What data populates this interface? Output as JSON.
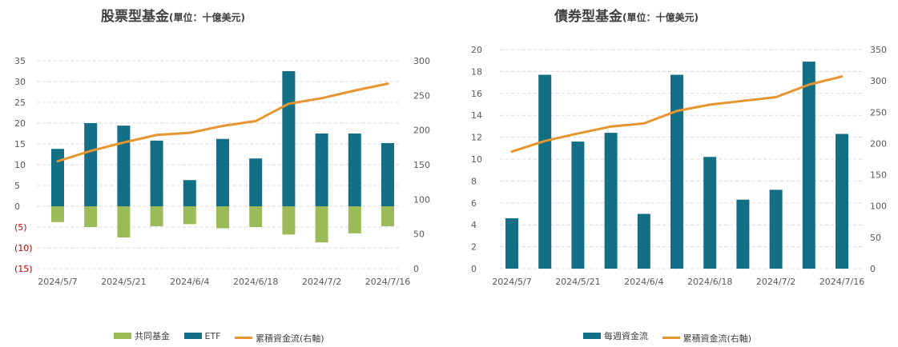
{
  "colors": {
    "fund": "#9bbb59",
    "etf": "#136f86",
    "weekly": "#136f86",
    "cumulative": "#e6952f",
    "negative_tick": "#c00000",
    "grid": "#d9d9d9",
    "text": "#595959"
  },
  "chart_data": [
    {
      "type": "bar",
      "title": "股票型基金",
      "unit": "(單位：十億美元)",
      "x_tick_labels": [
        "2024/5/7",
        "2024/5/21",
        "2024/6/4",
        "2024/6/18",
        "2024/7/2",
        "2024/7/16"
      ],
      "y_ticks_left": [
        "35",
        "30",
        "25",
        "20",
        "15",
        "10",
        "5",
        "0",
        "(5)",
        "(10)",
        "(15)"
      ],
      "y_ticks_right": [
        "300",
        "250",
        "200",
        "150",
        "100",
        "50",
        "0"
      ],
      "ylim_left": [
        -15,
        35
      ],
      "ylim_right": [
        0,
        300
      ],
      "stacked": true,
      "grid": true,
      "legend_position": "bottom",
      "series": [
        {
          "name": "共同基金",
          "kind": "bar",
          "axis": "left",
          "values": [
            -3.8,
            -5.0,
            -7.5,
            -4.8,
            -4.3,
            -5.3,
            -5.0,
            -6.8,
            -8.7,
            -6.5,
            -4.8
          ]
        },
        {
          "name": "ETF",
          "kind": "bar",
          "axis": "left",
          "values": [
            13.8,
            20.0,
            19.4,
            15.8,
            6.3,
            16.2,
            11.5,
            32.5,
            17.5,
            17.5,
            15.2
          ]
        },
        {
          "name": "累積資金流(右軸)",
          "kind": "line",
          "axis": "right",
          "values": [
            155,
            170,
            182,
            193,
            196,
            206,
            213,
            238,
            246,
            257,
            267
          ]
        }
      ]
    },
    {
      "type": "bar",
      "title": "債券型基金",
      "unit": "(單位：十億美元)",
      "x_tick_labels": [
        "2024/5/7",
        "2024/5/21",
        "2024/6/4",
        "2024/6/18",
        "2024/7/2",
        "2024/7/16"
      ],
      "y_ticks_left": [
        "20",
        "18",
        "16",
        "14",
        "12",
        "10",
        "8",
        "6",
        "4",
        "2",
        "0"
      ],
      "y_ticks_right": [
        "350",
        "300",
        "250",
        "200",
        "150",
        "100",
        "50",
        "0"
      ],
      "ylim_left": [
        0,
        20
      ],
      "ylim_right": [
        0,
        350
      ],
      "grid": true,
      "legend_position": "bottom",
      "series": [
        {
          "name": "每週資金流",
          "kind": "bar",
          "axis": "left",
          "values": [
            4.6,
            17.7,
            11.6,
            12.4,
            5.0,
            17.7,
            10.2,
            6.3,
            7.2,
            18.9,
            12.3
          ]
        },
        {
          "name": "累積資金流(右軸)",
          "kind": "line",
          "axis": "right",
          "values": [
            187,
            204,
            216,
            227,
            232,
            252,
            262,
            268,
            274,
            294,
            307
          ]
        }
      ]
    }
  ]
}
